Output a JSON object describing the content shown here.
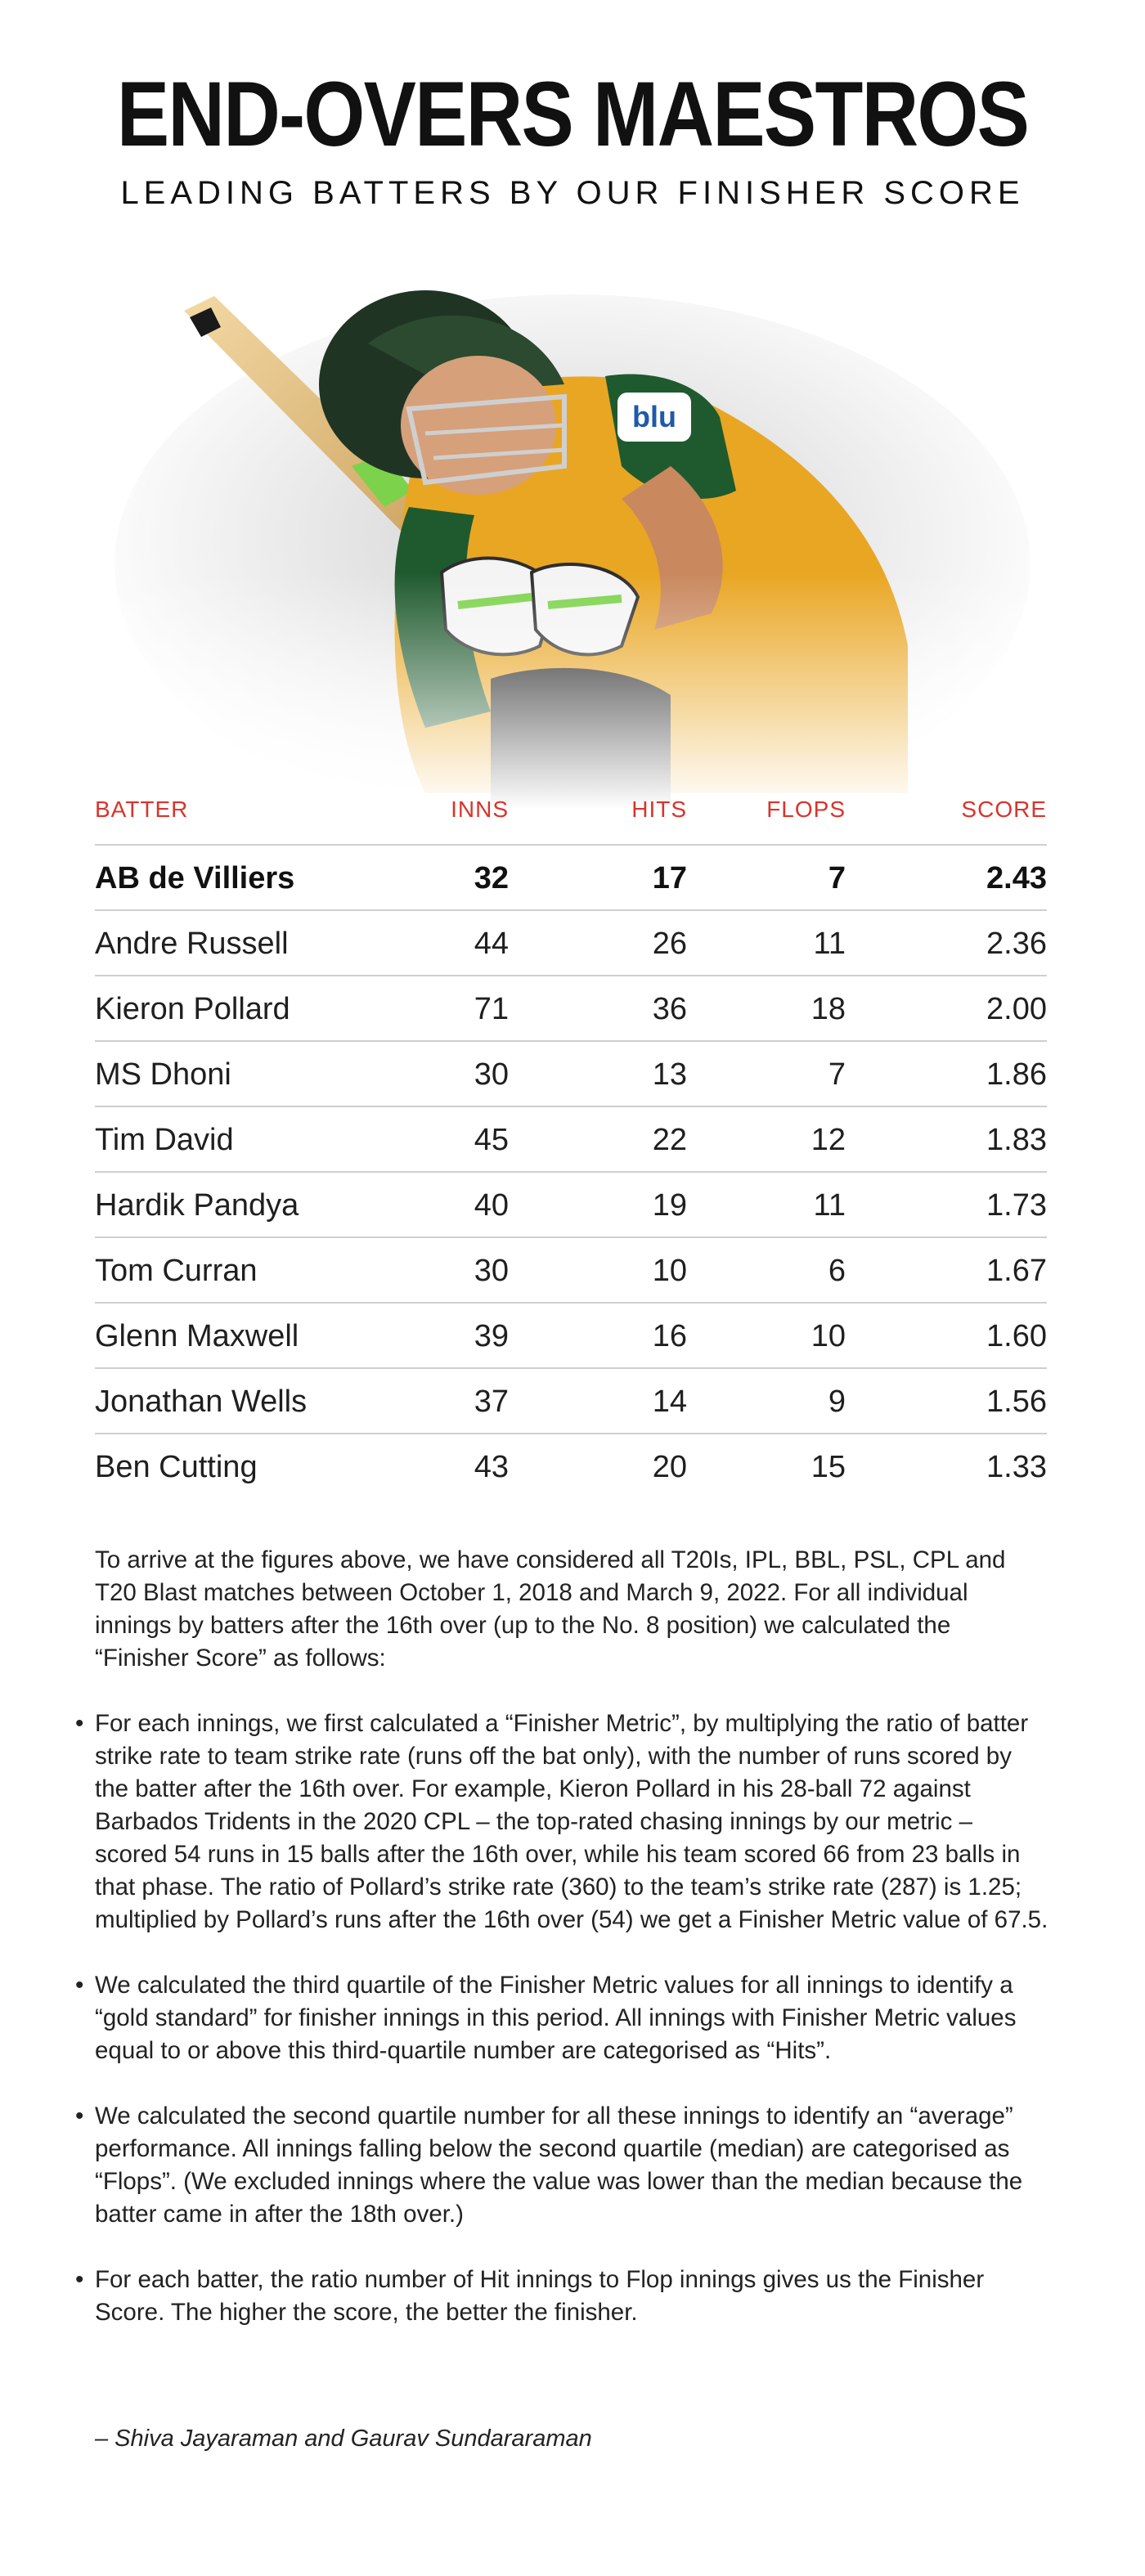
{
  "header": {
    "title": "END-OVERS MAESTROS",
    "subtitle": "LEADING BATTERS BY OUR FINISHER SCORE"
  },
  "hero": {
    "icon": "cricket-batter-icon",
    "shirt_sponsor": "blu"
  },
  "chart_data": {
    "type": "table",
    "columns": [
      "BATTER",
      "INNS",
      "HITS",
      "FLOPS",
      "SCORE"
    ],
    "rows": [
      {
        "batter": "AB de Villiers",
        "inns": "32",
        "hits": "17",
        "flops": "7",
        "score": "2.43"
      },
      {
        "batter": "Andre Russell",
        "inns": "44",
        "hits": "26",
        "flops": "11",
        "score": "2.36"
      },
      {
        "batter": "Kieron Pollard",
        "inns": "71",
        "hits": "36",
        "flops": "18",
        "score": "2.00"
      },
      {
        "batter": "MS Dhoni",
        "inns": "30",
        "hits": "13",
        "flops": "7",
        "score": "1.86"
      },
      {
        "batter": "Tim David",
        "inns": "45",
        "hits": "22",
        "flops": "12",
        "score": "1.83"
      },
      {
        "batter": "Hardik Pandya",
        "inns": "40",
        "hits": "19",
        "flops": "11",
        "score": "1.73"
      },
      {
        "batter": "Tom Curran",
        "inns": "30",
        "hits": "10",
        "flops": "6",
        "score": "1.67"
      },
      {
        "batter": "Glenn Maxwell",
        "inns": "39",
        "hits": "16",
        "flops": "10",
        "score": "1.60"
      },
      {
        "batter": "Jonathan Wells",
        "inns": "37",
        "hits": "14",
        "flops": "9",
        "score": "1.56"
      },
      {
        "batter": "Ben Cutting",
        "inns": "43",
        "hits": "20",
        "flops": "15",
        "score": "1.33"
      }
    ]
  },
  "colors": {
    "header_red": "#d9342b",
    "jersey_green": "#1f5a2e",
    "jersey_gold": "#e9a623"
  },
  "methodology": {
    "intro": "To arrive at the figures above, we have considered all T20Is, IPL, BBL, PSL, CPL and T20 Blast matches between October 1, 2018 and March 9, 2022. For all individual innings by batters after the 16th over (up to the No. 8 position) we calculated the “Finisher Score” as follows:",
    "bullets": [
      "For each innings, we first calculated a “Finisher Metric”, by multiplying the ratio of batter strike rate to team strike rate (runs off the bat only), with the number of runs scored by the batter after the 16th over. For example, Kieron Pollard in his 28-ball 72 against Barbados Tridents in the 2020 CPL – the top-rated chasing innings by our metric – scored 54 runs in 15 balls after the 16th over, while his team scored 66 from 23 balls in that phase. The ratio of Pollard’s strike rate (360) to the team’s strike rate (287) is 1.25; multiplied by Pollard’s runs after the 16th over (54) we get a Finisher Metric value of 67.5.",
      "We calculated the third quartile of the Finisher Metric values for all innings to identify a “gold standard” for finisher innings in this period. All innings with Finisher Metric values equal to or above this third-quartile number are categorised as “Hits”.",
      "We calculated the second quartile number for all these innings to identify an “average” performance. All innings falling below the second quartile (median) are categorised as “Flops”. (We excluded innings where the value was lower than the median because the batter came in after the 18th over.)",
      "For each batter, the ratio number of Hit innings to Flop innings gives us the Finisher Score. The higher the score, the better the finisher."
    ],
    "credit": "– Shiva Jayaraman and Gaurav Sundararaman"
  }
}
